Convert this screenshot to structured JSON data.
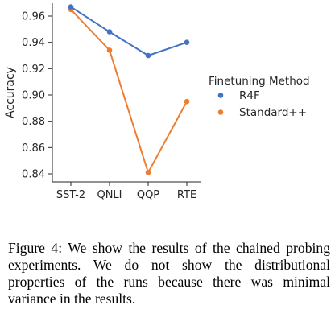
{
  "chart_data": {
    "type": "line",
    "categories": [
      "SST-2",
      "QNLI",
      "QQP",
      "RTE"
    ],
    "series": [
      {
        "name": "R4F",
        "color": "#4472c4",
        "values": [
          0.967,
          0.948,
          0.93,
          0.94
        ]
      },
      {
        "name": "Standard++",
        "color": "#ed7d31",
        "values": [
          0.965,
          0.934,
          0.841,
          0.895
        ]
      }
    ],
    "ylabel": "Accuracy",
    "ylim": [
      0.83,
      0.97
    ],
    "yticks": [
      0.84,
      0.86,
      0.88,
      0.9,
      0.92,
      0.94,
      0.96
    ],
    "ytick_labels": [
      "0.84",
      "0.86",
      "0.88",
      "0.90",
      "0.92",
      "0.94",
      "0.96"
    ],
    "grid": false,
    "legend": {
      "title": "Finetuning Method",
      "placement": "right"
    }
  },
  "caption": "Figure 4: We show the results of the chained probing experiments.  We do not show the distributional properties of the runs because there was minimal variance in the results."
}
